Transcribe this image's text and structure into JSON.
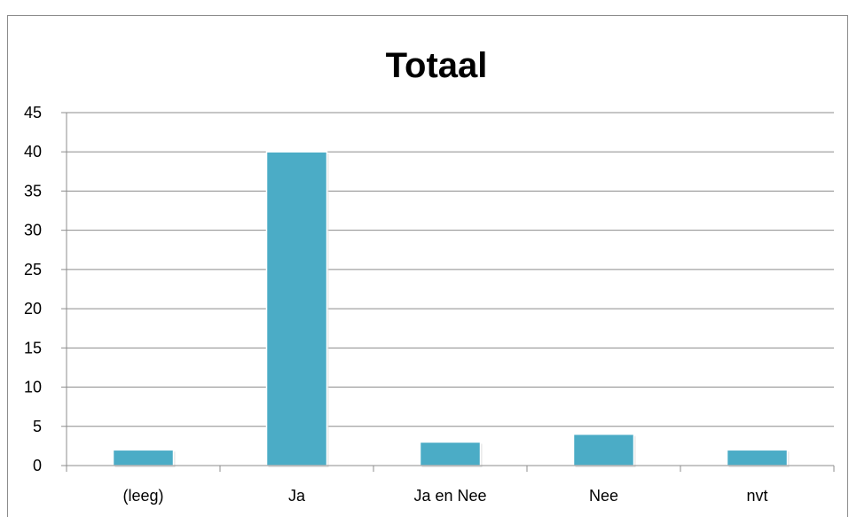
{
  "chart_data": {
    "type": "bar",
    "title": "Totaal",
    "categories": [
      "(leeg)",
      "Ja",
      "Ja en Nee",
      "Nee",
      "nvt"
    ],
    "values": [
      2,
      40,
      3,
      4,
      2
    ],
    "ylim": [
      0,
      45
    ],
    "yticks": [
      0,
      5,
      10,
      15,
      20,
      25,
      30,
      35,
      40,
      45
    ],
    "grid": true,
    "legend": "none",
    "bar_color": "#4bacc6"
  }
}
